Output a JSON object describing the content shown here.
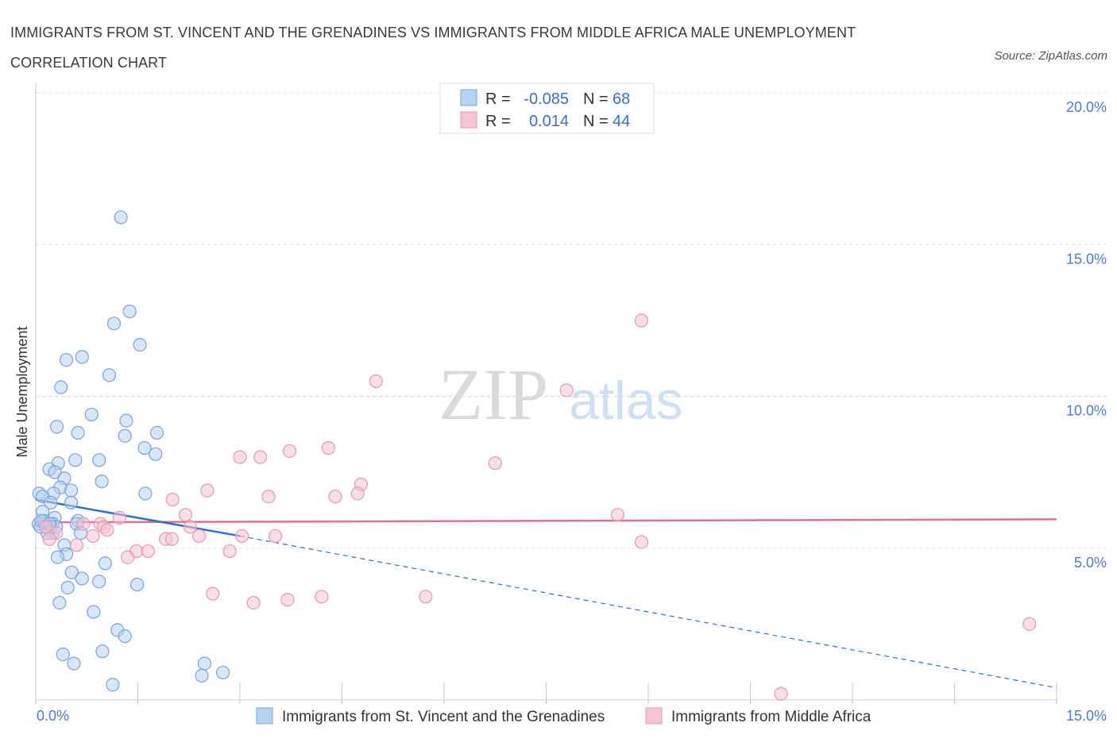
{
  "title_line1": "IMMIGRANTS FROM ST. VINCENT AND THE GRENADINES VS IMMIGRANTS FROM MIDDLE AFRICA MALE UNEMPLOYMENT",
  "title_line2": "CORRELATION CHART",
  "source": "Source: ZipAtlas.com",
  "watermark": {
    "zip": "ZIP",
    "atlas": "atlas"
  },
  "colors": {
    "blue_fill": "#b7d1f3",
    "blue_stroke": "#7aa3dc",
    "blue_line": "#2f6fd0",
    "pink_fill": "#f6c3d4",
    "pink_stroke": "#e897b2",
    "pink_line": "#e0709a",
    "tick_text": "#4a7cc7",
    "grid": "#d9d9d9"
  },
  "legend": {
    "r_label": "R =",
    "n_label": "N =",
    "series1": {
      "r": "-0.085",
      "n": "68"
    },
    "series2": {
      "r": "0.014",
      "n": "44"
    }
  },
  "chart_data": {
    "type": "scatter",
    "title": "IMMIGRANTS FROM ST. VINCENT AND THE GRENADINES VS IMMIGRANTS FROM MIDDLE AFRICA MALE UNEMPLOYMENT CORRELATION CHART",
    "xlabel": "",
    "ylabel": "Male Unemployment",
    "xlim": [
      0,
      15
    ],
    "ylim": [
      0,
      20
    ],
    "x_tick_labels": [
      "0.0%",
      "15.0%"
    ],
    "y_ticks": [
      5,
      10,
      15,
      20
    ],
    "y_tick_labels": [
      "5.0%",
      "10.0%",
      "15.0%",
      "20.0%"
    ],
    "grid": true,
    "series": [
      {
        "name": "Immigrants from St. Vincent and the Grenadines",
        "color": "blue",
        "R": -0.085,
        "N": 68,
        "trend": {
          "x0": 0.0,
          "y0": 6.6,
          "x1": 3.0,
          "y1": 5.4,
          "dashed_to_x": 15.0,
          "dashed_to_y": 0.4
        },
        "points": [
          [
            1.25,
            15.9
          ],
          [
            1.38,
            12.8
          ],
          [
            1.15,
            12.4
          ],
          [
            1.53,
            11.7
          ],
          [
            0.45,
            11.2
          ],
          [
            0.68,
            11.3
          ],
          [
            1.08,
            10.7
          ],
          [
            0.37,
            10.3
          ],
          [
            0.82,
            9.4
          ],
          [
            1.33,
            9.2
          ],
          [
            0.31,
            9.0
          ],
          [
            0.62,
            8.8
          ],
          [
            1.31,
            8.7
          ],
          [
            1.78,
            8.8
          ],
          [
            1.6,
            8.3
          ],
          [
            1.76,
            8.1
          ],
          [
            0.58,
            7.9
          ],
          [
            0.93,
            7.9
          ],
          [
            0.33,
            7.8
          ],
          [
            0.2,
            7.6
          ],
          [
            0.28,
            7.5
          ],
          [
            0.42,
            7.3
          ],
          [
            0.97,
            7.2
          ],
          [
            0.36,
            7.0
          ],
          [
            0.52,
            6.9
          ],
          [
            1.61,
            6.8
          ],
          [
            0.05,
            6.8
          ],
          [
            0.26,
            6.8
          ],
          [
            0.1,
            6.7
          ],
          [
            0.52,
            6.5
          ],
          [
            0.22,
            6.5
          ],
          [
            0.1,
            6.2
          ],
          [
            0.28,
            6.0
          ],
          [
            0.62,
            5.9
          ],
          [
            0.25,
            5.8
          ],
          [
            0.04,
            5.8
          ],
          [
            0.13,
            5.8
          ],
          [
            0.6,
            5.8
          ],
          [
            0.07,
            5.7
          ],
          [
            0.22,
            5.7
          ],
          [
            0.19,
            5.6
          ],
          [
            0.66,
            5.5
          ],
          [
            0.25,
            5.5
          ],
          [
            0.42,
            5.1
          ],
          [
            0.45,
            4.8
          ],
          [
            0.32,
            4.7
          ],
          [
            1.02,
            4.5
          ],
          [
            0.53,
            4.2
          ],
          [
            0.68,
            4.0
          ],
          [
            0.93,
            3.9
          ],
          [
            1.49,
            3.8
          ],
          [
            0.47,
            3.7
          ],
          [
            0.35,
            3.2
          ],
          [
            0.85,
            2.9
          ],
          [
            1.2,
            2.3
          ],
          [
            1.31,
            2.1
          ],
          [
            0.98,
            1.6
          ],
          [
            0.4,
            1.5
          ],
          [
            0.56,
            1.2
          ],
          [
            2.48,
            1.2
          ],
          [
            2.75,
            0.9
          ],
          [
            2.44,
            0.8
          ],
          [
            1.13,
            0.5
          ],
          [
            0.12,
            5.9
          ],
          [
            0.3,
            5.7
          ],
          [
            0.17,
            5.5
          ],
          [
            0.08,
            5.9
          ],
          [
            0.2,
            5.8
          ]
        ]
      },
      {
        "name": "Immigrants from Middle Africa",
        "color": "pink",
        "R": 0.014,
        "N": 44,
        "trend": {
          "x0": 0.0,
          "y0": 5.85,
          "x1": 15.0,
          "y1": 5.95
        },
        "points": [
          [
            8.9,
            12.5
          ],
          [
            5.0,
            10.5
          ],
          [
            7.8,
            10.2
          ],
          [
            4.3,
            8.3
          ],
          [
            3.73,
            8.2
          ],
          [
            3.0,
            8.0
          ],
          [
            3.3,
            8.0
          ],
          [
            6.75,
            7.8
          ],
          [
            4.78,
            7.1
          ],
          [
            4.73,
            6.8
          ],
          [
            2.52,
            6.9
          ],
          [
            4.4,
            6.7
          ],
          [
            3.42,
            6.7
          ],
          [
            2.01,
            6.6
          ],
          [
            2.2,
            6.1
          ],
          [
            1.23,
            6.0
          ],
          [
            8.55,
            6.1
          ],
          [
            0.95,
            5.8
          ],
          [
            0.7,
            5.8
          ],
          [
            1.0,
            5.7
          ],
          [
            2.27,
            5.7
          ],
          [
            1.05,
            5.6
          ],
          [
            0.3,
            5.5
          ],
          [
            0.84,
            5.4
          ],
          [
            2.4,
            5.4
          ],
          [
            3.52,
            5.4
          ],
          [
            3.03,
            5.4
          ],
          [
            1.91,
            5.3
          ],
          [
            2.0,
            5.3
          ],
          [
            8.9,
            5.2
          ],
          [
            0.6,
            5.1
          ],
          [
            0.2,
            5.3
          ],
          [
            1.48,
            4.9
          ],
          [
            1.65,
            4.9
          ],
          [
            2.85,
            4.9
          ],
          [
            1.35,
            4.7
          ],
          [
            2.6,
            3.5
          ],
          [
            4.2,
            3.4
          ],
          [
            3.7,
            3.3
          ],
          [
            3.2,
            3.2
          ],
          [
            5.73,
            3.4
          ],
          [
            14.6,
            2.5
          ],
          [
            10.95,
            0.2
          ],
          [
            0.15,
            5.7
          ]
        ]
      }
    ]
  }
}
